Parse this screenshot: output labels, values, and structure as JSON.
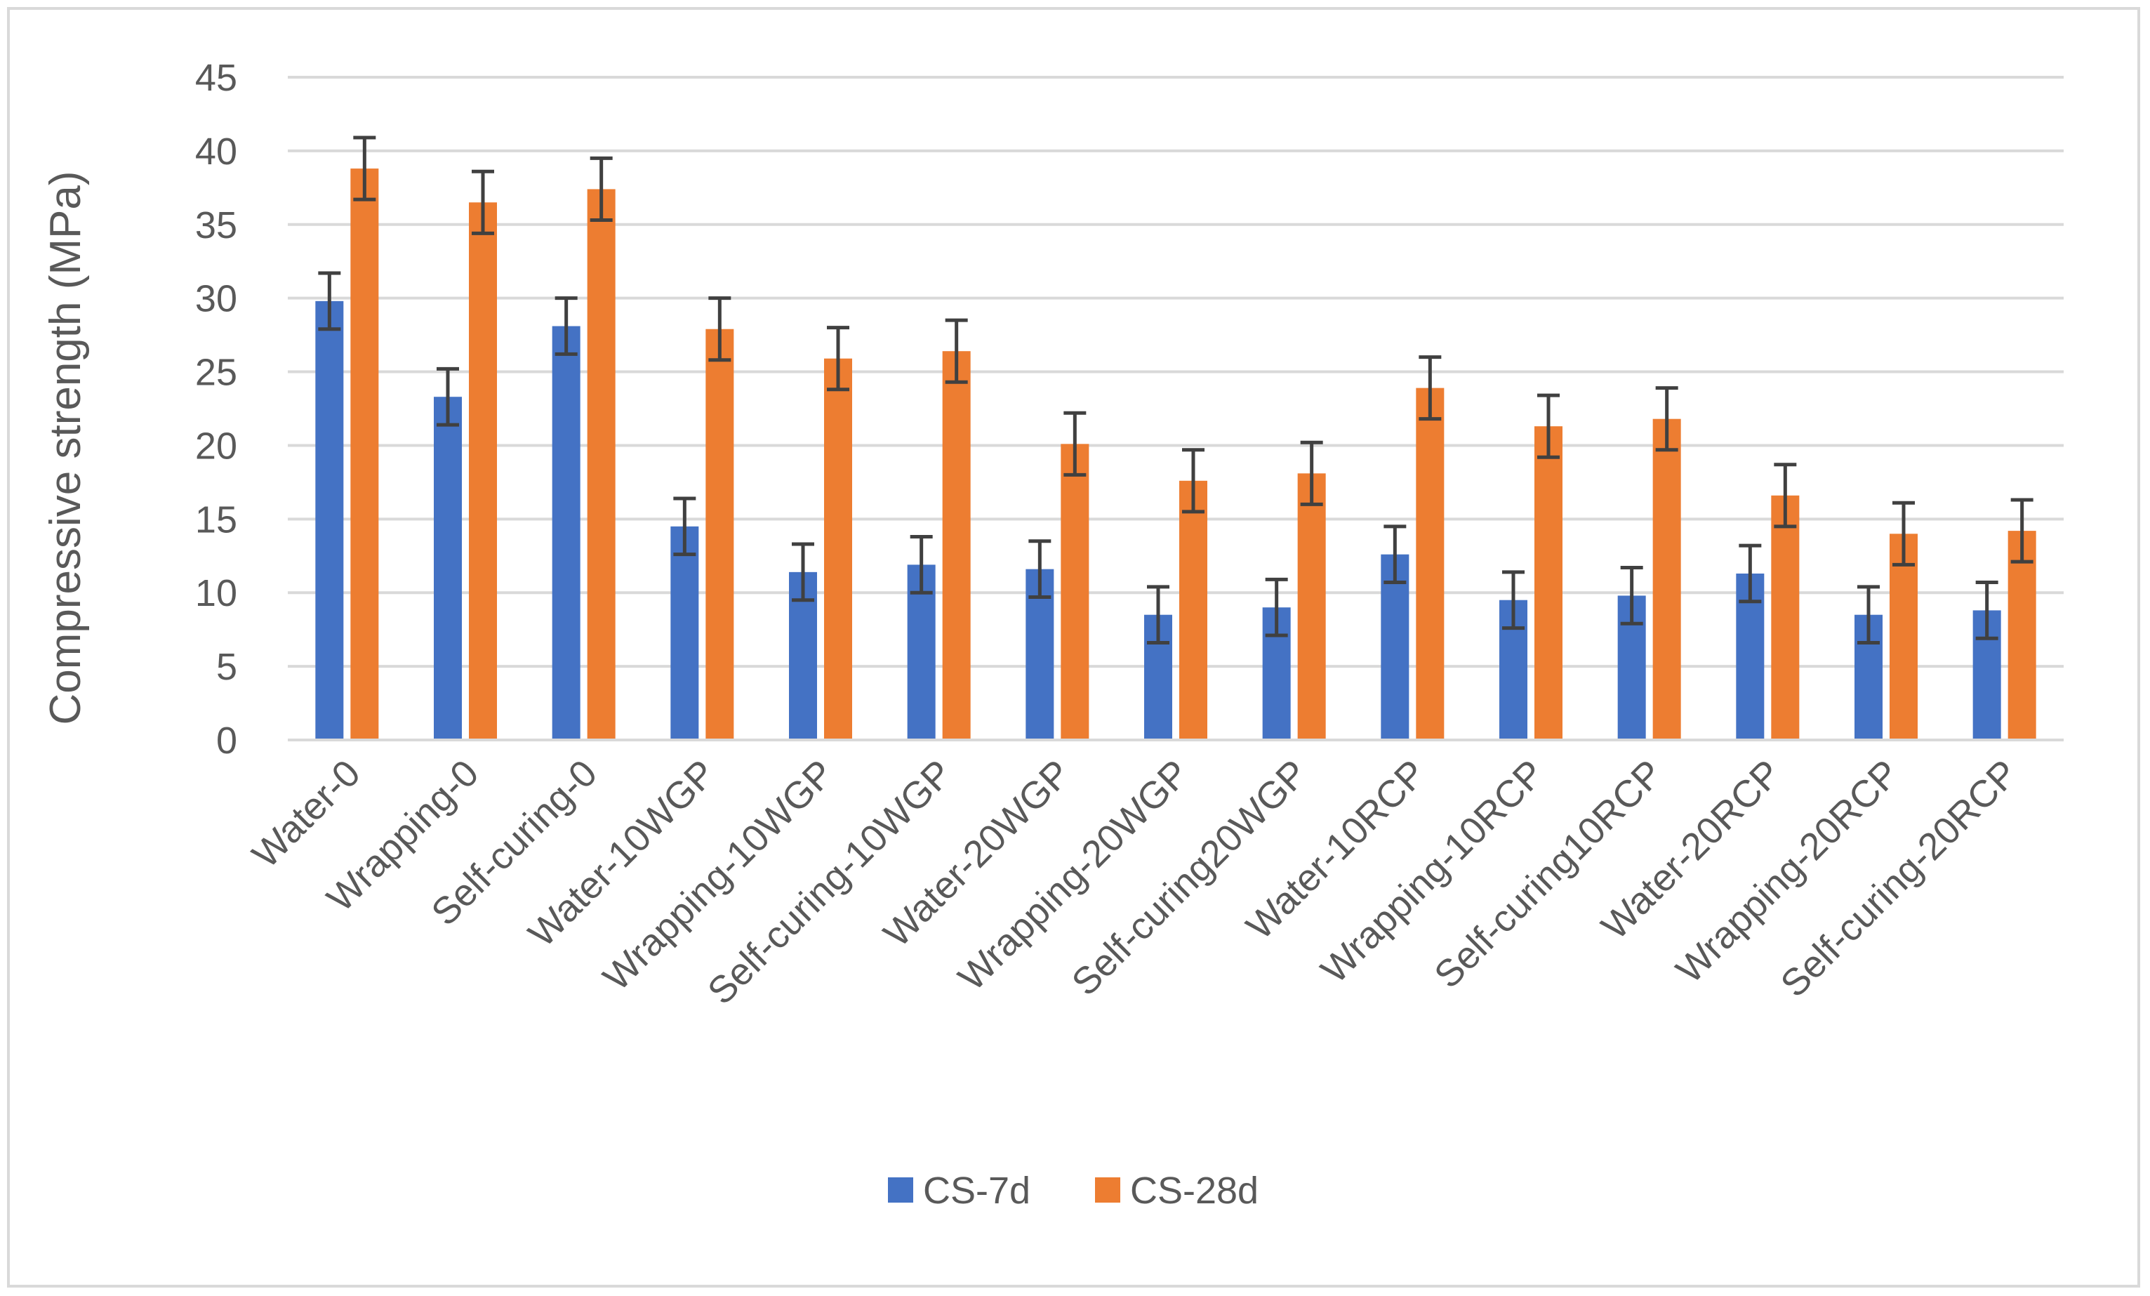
{
  "chart_data": {
    "type": "bar",
    "title": "",
    "xlabel": "",
    "ylabel": "Compressive strength (MPa)",
    "ylim": [
      0,
      45
    ],
    "yticks": [
      0,
      5,
      10,
      15,
      20,
      25,
      30,
      35,
      40,
      45
    ],
    "grid": true,
    "legend_position": "bottom",
    "categories": [
      "Water-0",
      "Wrapping-0",
      "Self-curing-0",
      "Water-10WGP",
      "Wrapping-10WGP",
      "Self-curing-10WGP",
      "Water-20WGP",
      "Wrapping-20WGP",
      "Self-curing20WGP",
      "Water-10RCP",
      "Wrapping-10RCP",
      "Self-curing10RCP",
      "Water-20RCP",
      "Wrapping-20RCP",
      "Self-curing-20RCP"
    ],
    "series": [
      {
        "name": "CS-7d",
        "color": "#4472c4",
        "values": [
          29.8,
          23.3,
          28.1,
          14.5,
          11.4,
          11.9,
          11.6,
          8.5,
          9.0,
          12.6,
          9.5,
          9.8,
          11.3,
          8.5,
          8.8
        ],
        "errors": [
          1.9,
          1.9,
          1.9,
          1.9,
          1.9,
          1.9,
          1.9,
          1.9,
          1.9,
          1.9,
          1.9,
          1.9,
          1.9,
          1.9,
          1.9
        ]
      },
      {
        "name": "CS-28d",
        "color": "#ed7d31",
        "values": [
          38.8,
          36.5,
          37.4,
          27.9,
          25.9,
          26.4,
          20.1,
          17.6,
          18.1,
          23.9,
          21.3,
          21.8,
          16.6,
          14.0,
          14.2
        ],
        "errors": [
          2.1,
          2.1,
          2.1,
          2.1,
          2.1,
          2.1,
          2.1,
          2.1,
          2.1,
          2.1,
          2.1,
          2.1,
          2.1,
          2.1,
          2.1
        ]
      }
    ]
  }
}
